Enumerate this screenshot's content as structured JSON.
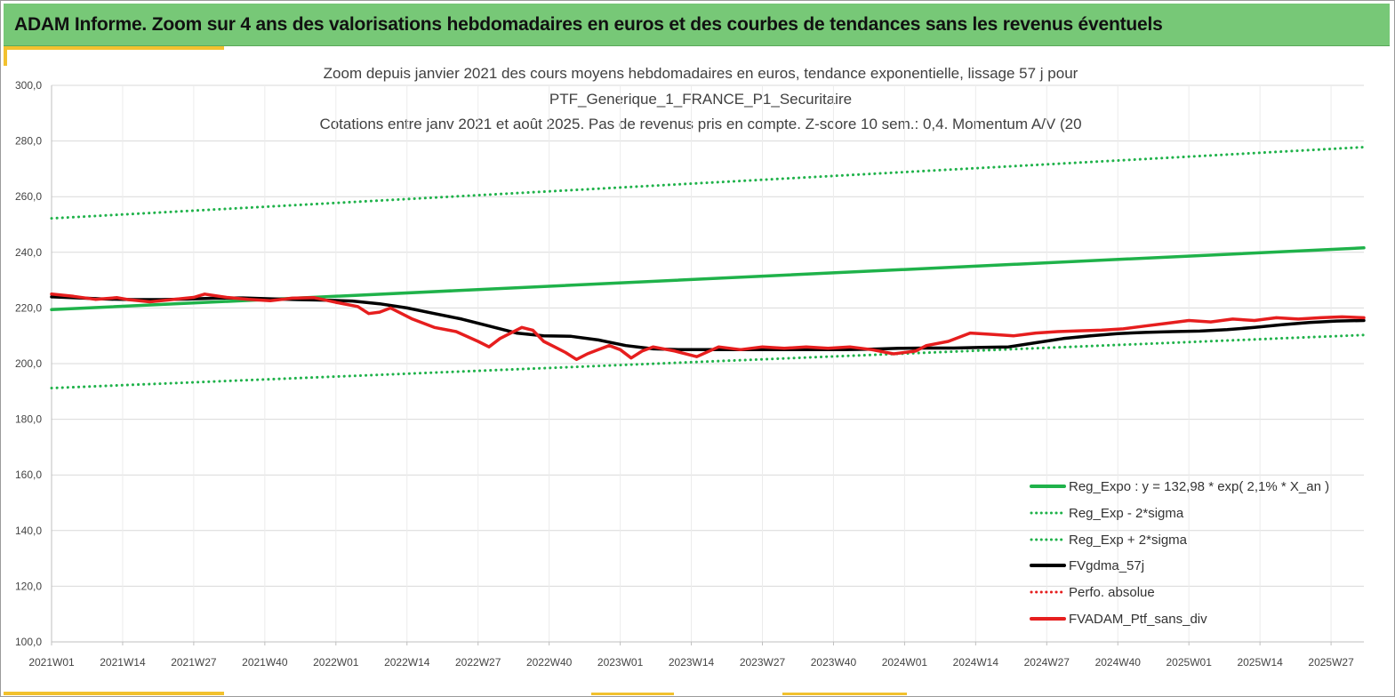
{
  "banner": {
    "title": "ADAM Informe. Zoom sur 4 ans des valorisations hebdomadaires en euros et des courbes de tendances sans les revenus éventuels"
  },
  "chart_data": {
    "type": "line",
    "title_lines": [
      "Zoom depuis janvier 2021 des cours moyens hebdomadaires  en euros, tendance exponentielle, lissage 57 j pour",
      "PTF_Generique_1_FRANCE_P1_Securitaire",
      "Cotations  entre janv 2021 et août 2025. Pas de revenus pris en compte. Z-score 10 sem.: 0,4. Momentum A/V (20"
    ],
    "xlabel": "",
    "ylabel": "",
    "x_tick_labels": [
      "2021W01",
      "2021W14",
      "2021W27",
      "2021W40",
      "2022W01",
      "2022W14",
      "2022W27",
      "2022W40",
      "2023W01",
      "2023W14",
      "2023W27",
      "2023W40",
      "2024W01",
      "2024W14",
      "2024W27",
      "2024W40",
      "2025W01",
      "2025W14",
      "2025W27"
    ],
    "x_range_weeks": [
      0,
      240
    ],
    "ylim": [
      100,
      300
    ],
    "y_ticks": [
      100,
      120,
      140,
      160,
      180,
      200,
      220,
      240,
      260,
      280,
      300
    ],
    "y_tick_labels": [
      "100,0",
      "120,0",
      "140,0",
      "160,0",
      "180,0",
      "200,0",
      "220,0",
      "240,0",
      "260,0",
      "280,0",
      "300,0"
    ],
    "grid": "horizontal+vertical",
    "legend_position": "bottom-right",
    "colors": {
      "green": "#1fb24a",
      "black": "#000000",
      "red": "#e61e1e"
    },
    "series": [
      {
        "name": "Reg_Expo : y = 132,98 * exp( 2,1% *  X_an )",
        "style": "solid",
        "color": "#1fb24a",
        "x": [
          0,
          240
        ],
        "y": [
          219.4,
          241.6
        ]
      },
      {
        "name": "Reg_Exp - 2*sigma",
        "style": "dotted",
        "color": "#1fb24a",
        "x": [
          0,
          240
        ],
        "y": [
          191.2,
          210.3
        ]
      },
      {
        "name": "Reg_Exp + 2*sigma",
        "style": "dotted",
        "color": "#1fb24a",
        "x": [
          0,
          240
        ],
        "y": [
          252.2,
          277.8
        ]
      },
      {
        "name": "FVgdma_57j",
        "style": "solid",
        "color": "#000000",
        "x": [
          0,
          5,
          10,
          15,
          20,
          25,
          30,
          35,
          40,
          45,
          50,
          55,
          60,
          65,
          70,
          75,
          80,
          85,
          90,
          95,
          100,
          105,
          110,
          115,
          120,
          125,
          130,
          135,
          140,
          145,
          150,
          155,
          160,
          165,
          170,
          175,
          180,
          185,
          190,
          195,
          200,
          205,
          210,
          215,
          220,
          225,
          230,
          235,
          240
        ],
        "y": [
          224.0,
          223.6,
          223.2,
          223.0,
          223.0,
          223.2,
          223.5,
          223.6,
          223.3,
          223.0,
          222.8,
          222.5,
          221.5,
          220.0,
          218.0,
          216.0,
          213.5,
          211.0,
          210.0,
          209.8,
          208.5,
          206.5,
          205.3,
          205.0,
          205.0,
          205.0,
          205.0,
          205.0,
          205.0,
          205.0,
          205.2,
          205.5,
          205.6,
          205.6,
          205.8,
          206.0,
          207.5,
          209.0,
          210.0,
          210.8,
          211.2,
          211.5,
          211.7,
          212.2,
          213.0,
          214.0,
          214.8,
          215.3,
          215.5
        ]
      },
      {
        "name": "Perfo. absolue",
        "style": "dotted",
        "color": "#e61e1e",
        "x": [],
        "y": []
      },
      {
        "name": "FVADAM_Ptf_sans_div",
        "style": "solid",
        "color": "#e61e1e",
        "x": [
          0,
          4,
          8,
          12,
          14,
          18,
          22,
          26,
          28,
          32,
          36,
          40,
          44,
          48,
          52,
          56,
          58,
          60,
          62,
          64,
          66,
          70,
          74,
          78,
          80,
          82,
          84,
          86,
          88,
          90,
          92,
          94,
          96,
          98,
          100,
          102,
          104,
          106,
          108,
          110,
          114,
          118,
          122,
          126,
          130,
          134,
          138,
          142,
          146,
          150,
          154,
          158,
          160,
          164,
          168,
          172,
          176,
          180,
          184,
          188,
          192,
          196,
          200,
          204,
          208,
          212,
          216,
          220,
          224,
          228,
          232,
          236,
          240
        ],
        "y": [
          225.0,
          224.2,
          223.1,
          223.7,
          223.0,
          222.2,
          223.0,
          223.8,
          225.0,
          223.8,
          223.1,
          222.6,
          223.5,
          223.7,
          222.0,
          220.5,
          218.0,
          218.5,
          220.0,
          218.0,
          216.0,
          213.0,
          211.5,
          208.0,
          206.0,
          209.0,
          211.0,
          213.0,
          212.0,
          208.0,
          206.0,
          204.0,
          201.5,
          203.5,
          205.0,
          206.5,
          205.0,
          202.0,
          204.5,
          206.0,
          204.5,
          202.5,
          206.0,
          205.0,
          206.0,
          205.5,
          206.0,
          205.5,
          206.0,
          205.0,
          203.5,
          204.5,
          206.5,
          208.0,
          211.0,
          210.5,
          210.0,
          211.0,
          211.5,
          211.8,
          212.0,
          212.5,
          213.5,
          214.5,
          215.5,
          215.0,
          216.0,
          215.5,
          216.5,
          216.0,
          216.5,
          216.8,
          216.5
        ]
      }
    ]
  }
}
